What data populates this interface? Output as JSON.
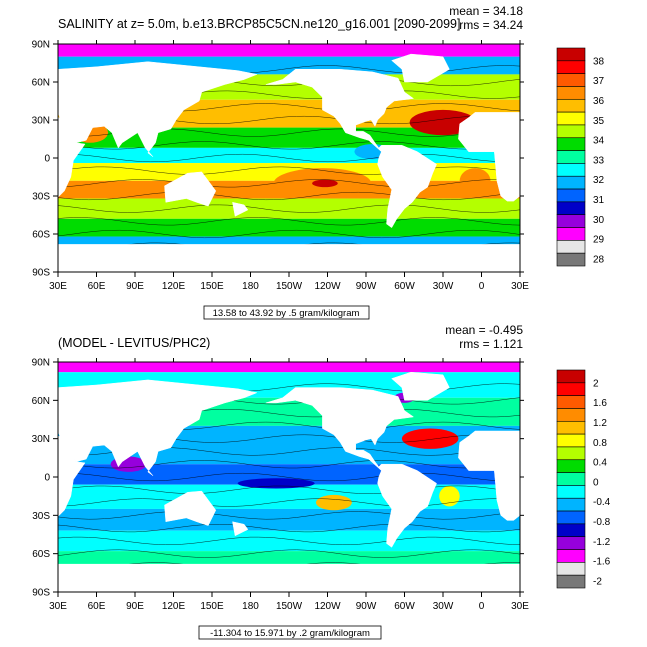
{
  "chart_data": [
    {
      "type": "heatmap",
      "title": "SALINITY at z=   5.0m, b.e13.BRCP85C5CN.ne120_g16.001 [2090-2099]",
      "stats": {
        "mean": "mean = 34.18",
        "rms": "rms = 34.24"
      },
      "range_label": "13.58 to 43.92 by .5 gram/kilogram",
      "x_ticks": [
        "30E",
        "60E",
        "90E",
        "120E",
        "150E",
        "180",
        "150W",
        "120W",
        "90W",
        "60W",
        "30W",
        "0",
        "30E"
      ],
      "y_ticks": [
        "90N",
        "60N",
        "30N",
        "0",
        "30S",
        "60S",
        "90S"
      ],
      "xlim": [
        30,
        390
      ],
      "ylim": [
        -90,
        90
      ],
      "colorbar": {
        "labels": [
          "38",
          "37",
          "36",
          "35",
          "34",
          "33",
          "32",
          "31",
          "30",
          "29",
          "28"
        ],
        "colors": [
          "#c80000",
          "#ff0000",
          "#ff5a00",
          "#ff8c00",
          "#ffbe00",
          "#ffff00",
          "#b4ff00",
          "#00dc00",
          "#00ffa0",
          "#00ffff",
          "#00b4ff",
          "#0064ff",
          "#0000c8",
          "#9600dc",
          "#ff00ff",
          "#e6e6e6",
          "#787878"
        ]
      }
    },
    {
      "type": "heatmap",
      "title": "(MODEL - LEVITUS/PHC2)",
      "stats": {
        "mean": "mean = -0.495",
        "rms": "rms = 1.121"
      },
      "range_label": "-11.304 to 15.971 by .2 gram/kilogram",
      "x_ticks": [
        "30E",
        "60E",
        "90E",
        "120E",
        "150E",
        "180",
        "150W",
        "120W",
        "90W",
        "60W",
        "30W",
        "0",
        "30E"
      ],
      "y_ticks": [
        "90N",
        "60N",
        "30N",
        "0",
        "30S",
        "60S",
        "90S"
      ],
      "xlim": [
        30,
        390
      ],
      "ylim": [
        -90,
        90
      ],
      "colorbar": {
        "labels": [
          "2",
          "1.6",
          "1.2",
          "0.8",
          "0.4",
          "0",
          "-0.4",
          "-0.8",
          "-1.2",
          "-1.6",
          "-2"
        ],
        "colors": [
          "#c80000",
          "#ff0000",
          "#ff5a00",
          "#ff8c00",
          "#ffbe00",
          "#ffff00",
          "#b4ff00",
          "#00dc00",
          "#00ffa0",
          "#00ffff",
          "#00b4ff",
          "#0064ff",
          "#0000c8",
          "#9600dc",
          "#ff00ff",
          "#e6e6e6",
          "#787878"
        ]
      }
    }
  ]
}
